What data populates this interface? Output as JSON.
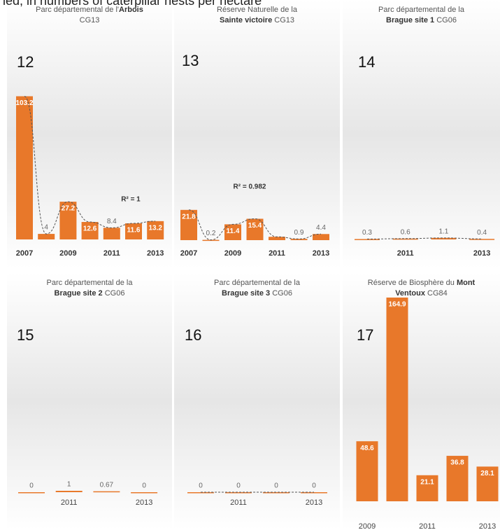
{
  "caption": "ied, in numbers of caterpillar nests per hectare",
  "chart_data": [
    {
      "type": "bar",
      "label": "12",
      "color": "#e8782a",
      "trend": true,
      "title": [
        [
          {
            "text": "Parc départemental de l'"
          },
          {
            "text": "Arbois",
            "bold": true
          }
        ],
        [
          {
            "text": "CG13"
          }
        ]
      ],
      "categories": [
        "2007",
        null,
        "2009",
        null,
        "2011",
        null,
        "2013"
      ],
      "values": [
        103.2,
        4,
        27.2,
        12.6,
        8.4,
        11.6,
        13.2
      ],
      "ylim": [
        0,
        110
      ],
      "annotation": "R² = 1"
    },
    {
      "type": "bar",
      "label": "13",
      "color": "#e8782a",
      "trend": true,
      "title": [
        [
          {
            "text": "Réserve Naturelle de la"
          }
        ],
        [
          {
            "text": "Sainte victoire",
            "bold": true
          },
          {
            "text": " CG13"
          }
        ]
      ],
      "categories": [
        "2007",
        null,
        "2009",
        null,
        "2011",
        null,
        "2013"
      ],
      "values": [
        21.8,
        0.2,
        11.4,
        15.4,
        2.4,
        0.9,
        4.4
      ],
      "value_labels": [
        "21.8",
        "0.2",
        "11.4",
        "15.4",
        null,
        "0.9",
        "4.4"
      ],
      "ylim": [
        0,
        110
      ],
      "annotation": "R² = 0.982"
    },
    {
      "type": "bar",
      "label": "14",
      "color": "#e8782a",
      "trend": true,
      "title": [
        [
          {
            "text": "Parc départemental de la"
          }
        ],
        [
          {
            "text": "Brague site 1",
            "bold": true
          },
          {
            "text": " CG06"
          }
        ]
      ],
      "categories": [
        null,
        "2011",
        null,
        "2013"
      ],
      "values": [
        0.3,
        0.6,
        1.1,
        0.4
      ],
      "ylim": [
        0,
        110
      ]
    },
    {
      "type": "bar",
      "label": "15",
      "color": "#e8782a",
      "trend": false,
      "title": [
        [
          {
            "text": "Parc départemental de la"
          }
        ],
        [
          {
            "text": "Brague site 2",
            "bold": true
          },
          {
            "text": " CG06"
          }
        ]
      ],
      "categories": [
        null,
        "2011",
        null,
        "2013"
      ],
      "values": [
        0,
        1,
        0.67,
        0
      ],
      "ylim": [
        0,
        110
      ]
    },
    {
      "type": "bar",
      "label": "16",
      "color": "#e8782a",
      "trend": true,
      "title": [
        [
          {
            "text": "Parc départemental de la"
          }
        ],
        [
          {
            "text": "Brague site 3",
            "bold": true
          },
          {
            "text": " CG06"
          }
        ]
      ],
      "categories": [
        null,
        "2011",
        null,
        "2013"
      ],
      "values": [
        0,
        0,
        0,
        0
      ],
      "ylim": [
        0,
        110
      ]
    },
    {
      "type": "bar",
      "label": "17",
      "color": "#e8782a",
      "trend": false,
      "title": [
        [
          {
            "text": "Réserve de Biosphère du "
          },
          {
            "text": "Mont",
            "bold": true
          }
        ],
        [
          {
            "text": "Ventoux",
            "bold": true
          },
          {
            "text": " CG84"
          }
        ]
      ],
      "categories": [
        "2009",
        null,
        "2011",
        null,
        "2013"
      ],
      "values": [
        48.6,
        164.9,
        21.1,
        36.8,
        28.1
      ],
      "ylim": [
        0,
        170
      ]
    }
  ]
}
